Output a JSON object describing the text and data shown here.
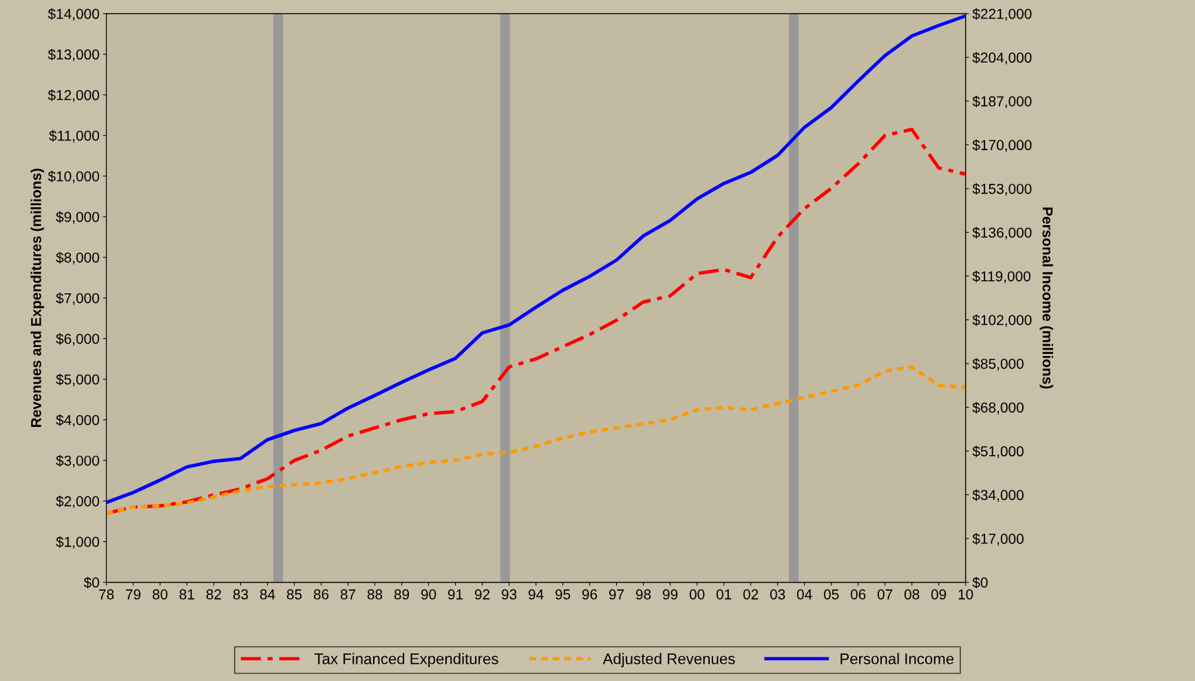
{
  "chart_data": {
    "type": "line",
    "ylabel": "Revenues and Expenditures (millions)",
    "y2label": "Personal Income (millions)",
    "x": [
      1978,
      1979,
      1980,
      1981,
      1982,
      1983,
      1984,
      1985,
      1986,
      1987,
      1988,
      1989,
      1990,
      1991,
      1992,
      1993,
      1994,
      1995,
      1996,
      1997,
      1998,
      1999,
      2000,
      2001,
      2002,
      2003,
      2004,
      2005,
      2006,
      2007,
      2008,
      2009,
      2010
    ],
    "xlim": [
      1978,
      2010
    ],
    "xticks": [
      {
        "value": 1978,
        "label": "78"
      },
      {
        "value": 1979,
        "label": "79"
      },
      {
        "value": 1980,
        "label": "80"
      },
      {
        "value": 1981,
        "label": "81"
      },
      {
        "value": 1982,
        "label": "82"
      },
      {
        "value": 1983,
        "label": "83"
      },
      {
        "value": 1984,
        "label": "84"
      },
      {
        "value": 1985,
        "label": "85"
      },
      {
        "value": 1986,
        "label": "86"
      },
      {
        "value": 1987,
        "label": "87"
      },
      {
        "value": 1988,
        "label": "88"
      },
      {
        "value": 1989,
        "label": "89"
      },
      {
        "value": 1990,
        "label": "90"
      },
      {
        "value": 1991,
        "label": "91"
      },
      {
        "value": 1992,
        "label": "92"
      },
      {
        "value": 1993,
        "label": "93"
      },
      {
        "value": 1994,
        "label": "94"
      },
      {
        "value": 1995,
        "label": "95"
      },
      {
        "value": 1996,
        "label": "96"
      },
      {
        "value": 1997,
        "label": "97"
      },
      {
        "value": 1998,
        "label": "98"
      },
      {
        "value": 1999,
        "label": "99"
      },
      {
        "value": 2000,
        "label": "00"
      },
      {
        "value": 2001,
        "label": "01"
      },
      {
        "value": 2002,
        "label": "02"
      },
      {
        "value": 2003,
        "label": "03"
      },
      {
        "value": 2004,
        "label": "04"
      },
      {
        "value": 2005,
        "label": "05"
      },
      {
        "value": 2006,
        "label": "06"
      },
      {
        "value": 2007,
        "label": "07"
      },
      {
        "value": 2008,
        "label": "08"
      },
      {
        "value": 2009,
        "label": "09"
      },
      {
        "value": 2010,
        "label": "10"
      }
    ],
    "ylim": [
      0,
      14000
    ],
    "yticks": [
      {
        "value": 0,
        "label": "$0"
      },
      {
        "value": 1000,
        "label": "$1,000"
      },
      {
        "value": 2000,
        "label": "$2,000"
      },
      {
        "value": 3000,
        "label": "$3,000"
      },
      {
        "value": 4000,
        "label": "$4,000"
      },
      {
        "value": 5000,
        "label": "$5,000"
      },
      {
        "value": 6000,
        "label": "$6,000"
      },
      {
        "value": 7000,
        "label": "$7,000"
      },
      {
        "value": 8000,
        "label": "$8,000"
      },
      {
        "value": 9000,
        "label": "$9,000"
      },
      {
        "value": 10000,
        "label": "$10,000"
      },
      {
        "value": 11000,
        "label": "$11,000"
      },
      {
        "value": 12000,
        "label": "$12,000"
      },
      {
        "value": 13000,
        "label": "$13,000"
      },
      {
        "value": 14000,
        "label": "$14,000"
      }
    ],
    "y2lim": [
      0,
      221000
    ],
    "y2ticks": [
      {
        "value": 0,
        "label": "$0"
      },
      {
        "value": 17000,
        "label": "$17,000"
      },
      {
        "value": 34000,
        "label": "$34,000"
      },
      {
        "value": 51000,
        "label": "$51,000"
      },
      {
        "value": 68000,
        "label": "$68,000"
      },
      {
        "value": 85000,
        "label": "$85,000"
      },
      {
        "value": 102000,
        "label": "$102,000"
      },
      {
        "value": 119000,
        "label": "$119,000"
      },
      {
        "value": 136000,
        "label": "$136,000"
      },
      {
        "value": 153000,
        "label": "$153,000"
      },
      {
        "value": 170000,
        "label": "$170,000"
      },
      {
        "value": 187000,
        "label": "$187,000"
      },
      {
        "value": 204000,
        "label": "$204,000"
      },
      {
        "value": 221000,
        "label": "$221,000"
      }
    ],
    "grid": false,
    "legend": "bottom",
    "marker": "none",
    "ref_lines": [
      {
        "axis": "x",
        "value": 1984.4,
        "color": "#999999"
      },
      {
        "axis": "x",
        "value": 1992.85,
        "color": "#999999"
      },
      {
        "axis": "x",
        "value": 2003.6,
        "color": "#999999"
      }
    ],
    "series": [
      {
        "name": "Tax Financed Expenditures",
        "color": "#ff0000",
        "line_style": "dashdot",
        "values": [
          1700,
          1850,
          1880,
          1980,
          2150,
          2300,
          2550,
          3000,
          3250,
          3600,
          3800,
          4000,
          4150,
          4200,
          4450,
          5300,
          5500,
          5800,
          6100,
          6450,
          6900,
          7050,
          7600,
          7700,
          7500,
          8500,
          9200,
          9700,
          10300,
          11000,
          11150,
          10200,
          10050
        ]
      },
      {
        "name": "Adjusted Revenues",
        "color": "#ff9900",
        "line_style": "dotted",
        "values": [
          1700,
          1850,
          1880,
          1950,
          2100,
          2250,
          2350,
          2400,
          2450,
          2550,
          2700,
          2850,
          2950,
          3000,
          3150,
          3200,
          3350,
          3550,
          3700,
          3800,
          3900,
          4000,
          4250,
          4300,
          4250,
          4400,
          4550,
          4700,
          4850,
          5200,
          5300,
          4850,
          4800
        ]
      },
      {
        "name": "Personal Income",
        "color": "#0000ff",
        "line_style": "solid",
        "axis": "y2",
        "values": [
          31000,
          34900,
          39700,
          44800,
          47000,
          48100,
          55400,
          59000,
          61700,
          67700,
          72600,
          77700,
          82500,
          87000,
          96900,
          100000,
          106900,
          113500,
          118900,
          125200,
          134600,
          140600,
          149000,
          155000,
          159300,
          165900,
          176800,
          184500,
          194800,
          204700,
          212300,
          216400,
          220100
        ]
      }
    ]
  }
}
